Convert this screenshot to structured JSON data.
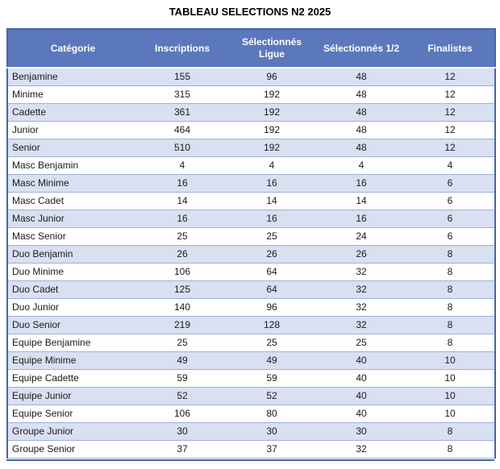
{
  "title": "TABLEAU SELECTIONS N2 2025",
  "colors": {
    "header_bg": "#5B78BD",
    "row_alt_bg": "#D9E0F1",
    "row_bg": "#FFFFFF",
    "outer_border": "#4264AE",
    "row_border": "#9DB0DA",
    "header_text": "#FFFFFF",
    "body_text": "#1A1A1A",
    "title_text": "#000000"
  },
  "table": {
    "columns": [
      "Catégorie",
      "Inscriptions",
      "Sélectionnés Ligue",
      "Sélectionnés 1/2",
      "Finalistes"
    ],
    "rows": [
      [
        "Benjamine",
        "155",
        "96",
        "48",
        "12"
      ],
      [
        "Minime",
        "315",
        "192",
        "48",
        "12"
      ],
      [
        "Cadette",
        "361",
        "192",
        "48",
        "12"
      ],
      [
        "Junior",
        "464",
        "192",
        "48",
        "12"
      ],
      [
        "Senior",
        "510",
        "192",
        "48",
        "12"
      ],
      [
        "Masc Benjamin",
        "4",
        "4",
        "4",
        "4"
      ],
      [
        "Masc Minime",
        "16",
        "16",
        "16",
        "6"
      ],
      [
        "Masc Cadet",
        "14",
        "14",
        "14",
        "6"
      ],
      [
        "Masc Junior",
        "16",
        "16",
        "16",
        "6"
      ],
      [
        "Masc Senior",
        "25",
        "25",
        "24",
        "6"
      ],
      [
        "Duo Benjamin",
        "26",
        "26",
        "26",
        "8"
      ],
      [
        "Duo Minime",
        "106",
        "64",
        "32",
        "8"
      ],
      [
        "Duo Cadet",
        "125",
        "64",
        "32",
        "8"
      ],
      [
        "Duo Junior",
        "140",
        "96",
        "32",
        "8"
      ],
      [
        "Duo Senior",
        "219",
        "128",
        "32",
        "8"
      ],
      [
        "Equipe Benjamine",
        "25",
        "25",
        "25",
        "8"
      ],
      [
        "Equipe Minime",
        "49",
        "49",
        "40",
        "10"
      ],
      [
        "Equipe Cadette",
        "59",
        "59",
        "40",
        "10"
      ],
      [
        "Equipe Junior",
        "52",
        "52",
        "40",
        "10"
      ],
      [
        "Equipe Senior",
        "106",
        "80",
        "40",
        "10"
      ],
      [
        "Groupe Junior",
        "30",
        "30",
        "30",
        "8"
      ],
      [
        "Groupe Senior",
        "37",
        "37",
        "32",
        "8"
      ]
    ]
  }
}
